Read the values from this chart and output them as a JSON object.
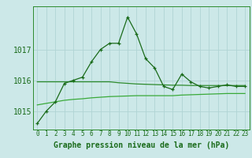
{
  "xlabel": "Graphe pression niveau de la mer (hPa)",
  "background_color": "#cce8e8",
  "grid_color": "#b0d4d4",
  "line_color_main": "#1a6b1a",
  "line_color_smooth1": "#2d8b2d",
  "line_color_smooth2": "#3aaa3a",
  "hours": [
    0,
    1,
    2,
    3,
    4,
    5,
    6,
    7,
    8,
    9,
    10,
    11,
    12,
    13,
    14,
    15,
    16,
    17,
    18,
    19,
    20,
    21,
    22,
    23
  ],
  "pressure_main": [
    1014.6,
    1015.0,
    1015.3,
    1015.9,
    1016.0,
    1016.1,
    1016.6,
    1017.0,
    1017.2,
    1017.2,
    1018.05,
    1017.5,
    1016.7,
    1016.4,
    1015.8,
    1015.7,
    1016.2,
    1015.95,
    1015.8,
    1015.75,
    1015.8,
    1015.85,
    1015.8,
    1015.8
  ],
  "pressure_smooth1": [
    1015.95,
    1015.95,
    1015.95,
    1015.95,
    1015.95,
    1015.95,
    1015.95,
    1015.95,
    1015.95,
    1015.92,
    1015.9,
    1015.88,
    1015.87,
    1015.86,
    1015.85,
    1015.84,
    1015.84,
    1015.83,
    1015.83,
    1015.83,
    1015.83,
    1015.83,
    1015.83,
    1015.83
  ],
  "pressure_smooth2": [
    1015.2,
    1015.25,
    1015.3,
    1015.35,
    1015.38,
    1015.4,
    1015.43,
    1015.45,
    1015.47,
    1015.48,
    1015.49,
    1015.5,
    1015.5,
    1015.5,
    1015.5,
    1015.5,
    1015.52,
    1015.53,
    1015.54,
    1015.55,
    1015.56,
    1015.57,
    1015.57,
    1015.57
  ],
  "ylim": [
    1014.4,
    1018.4
  ],
  "yticks": [
    1015,
    1016,
    1017
  ],
  "xticks": [
    0,
    1,
    2,
    3,
    4,
    5,
    6,
    7,
    8,
    9,
    10,
    11,
    12,
    13,
    14,
    15,
    16,
    17,
    18,
    19,
    20,
    21,
    22,
    23
  ],
  "xlabel_fontsize": 7,
  "ytick_fontsize": 7,
  "xtick_fontsize": 5.5
}
